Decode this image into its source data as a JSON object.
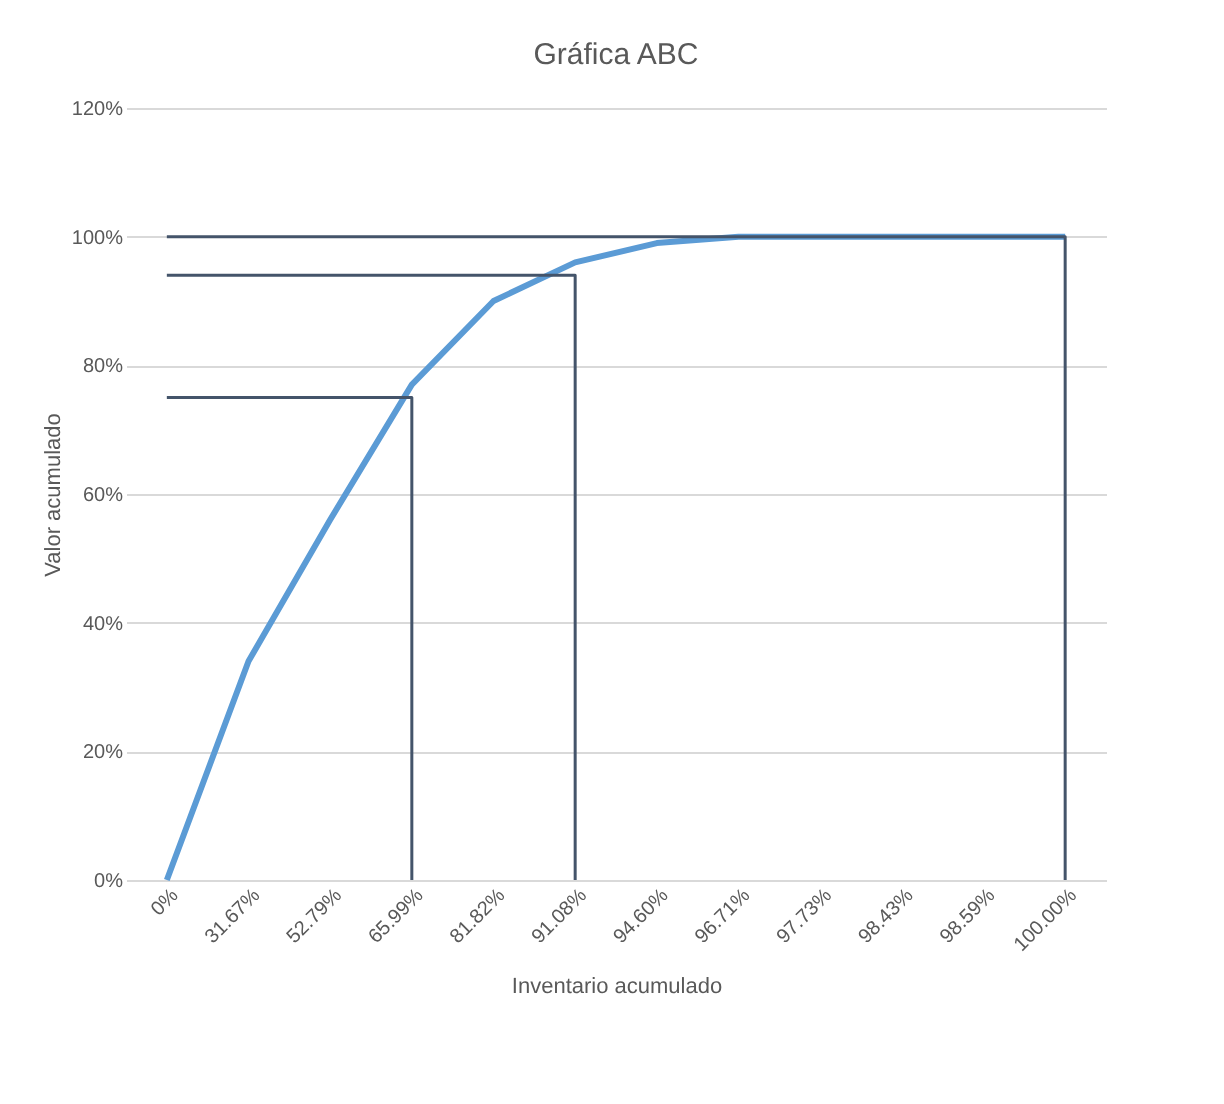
{
  "chart_data": {
    "type": "line",
    "title": "Gráfica ABC",
    "xlabel": "Inventario acumulado",
    "ylabel": "Valor acumulado",
    "categories": [
      "0%",
      "31.67%",
      "52.79%",
      "65.99%",
      "81.82%",
      "91.08%",
      "94.60%",
      "96.71%",
      "97.73%",
      "98.43%",
      "98.59%",
      "100.00%"
    ],
    "series": [
      {
        "color": "#5b9bd5",
        "values": [
          0,
          34,
          56,
          77,
          90,
          96,
          99,
          100,
          100,
          100,
          100,
          100
        ]
      },
      {
        "color": "#44546a",
        "x": [
          "0%",
          "65.99%",
          "65.99%"
        ],
        "values": [
          75,
          75,
          0
        ]
      },
      {
        "color": "#44546a",
        "x": [
          "0%",
          "91.08%",
          "91.08%"
        ],
        "values": [
          94,
          94,
          0
        ]
      },
      {
        "color": "#44546a",
        "x": [
          "0%",
          "100.00%",
          "100.00%"
        ],
        "values": [
          100,
          100,
          0
        ]
      }
    ],
    "ylim": [
      0,
      120
    ],
    "yticks": [
      {
        "value": 0,
        "label": "0%"
      },
      {
        "value": 20,
        "label": "20%"
      },
      {
        "value": 40,
        "label": "40%"
      },
      {
        "value": 60,
        "label": "60%"
      },
      {
        "value": 80,
        "label": "80%"
      },
      {
        "value": 100,
        "label": "100%"
      },
      {
        "value": 120,
        "label": "120%"
      }
    ],
    "grid": "y",
    "marker": "none",
    "line_style": "solid"
  }
}
